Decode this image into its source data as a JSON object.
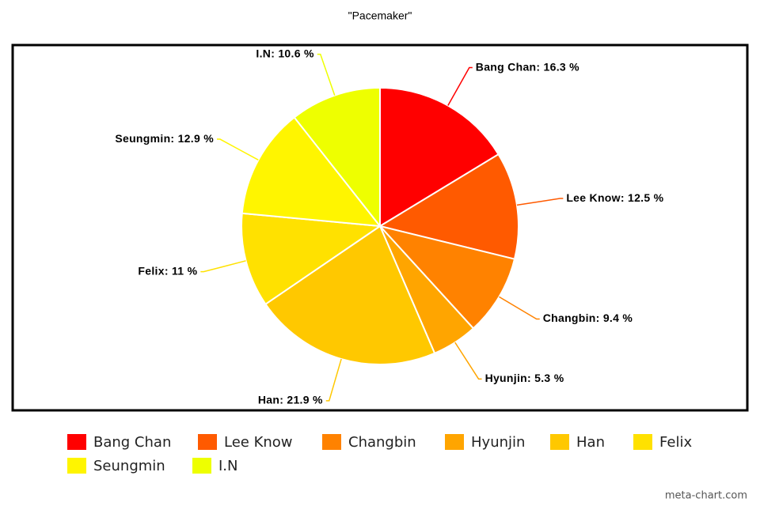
{
  "chart_data": {
    "type": "pie",
    "title": "\"Pacemaker\"",
    "categories": [
      "Bang Chan",
      "Lee Know",
      "Changbin",
      "Hyunjin",
      "Han",
      "Felix",
      "Seungmin",
      "I.N"
    ],
    "values": [
      16.3,
      12.5,
      9.4,
      5.3,
      21.9,
      11,
      12.9,
      10.6
    ],
    "value_labels": [
      "Bang Chan: 16.3 %",
      "Lee Know: 12.5 %",
      "Changbin: 9.4 %",
      "Hyunjin: 5.3 %",
      "Han: 21.9 %",
      "Felix: 11 %",
      "Seungmin: 12.9 %",
      "I.N: 10.6 %"
    ],
    "colors": [
      "#ff0000",
      "#ff5a00",
      "#ff8200",
      "#ffa500",
      "#ffc800",
      "#ffe100",
      "#fff500",
      "#eeff00"
    ],
    "source": "meta-chart.com"
  }
}
